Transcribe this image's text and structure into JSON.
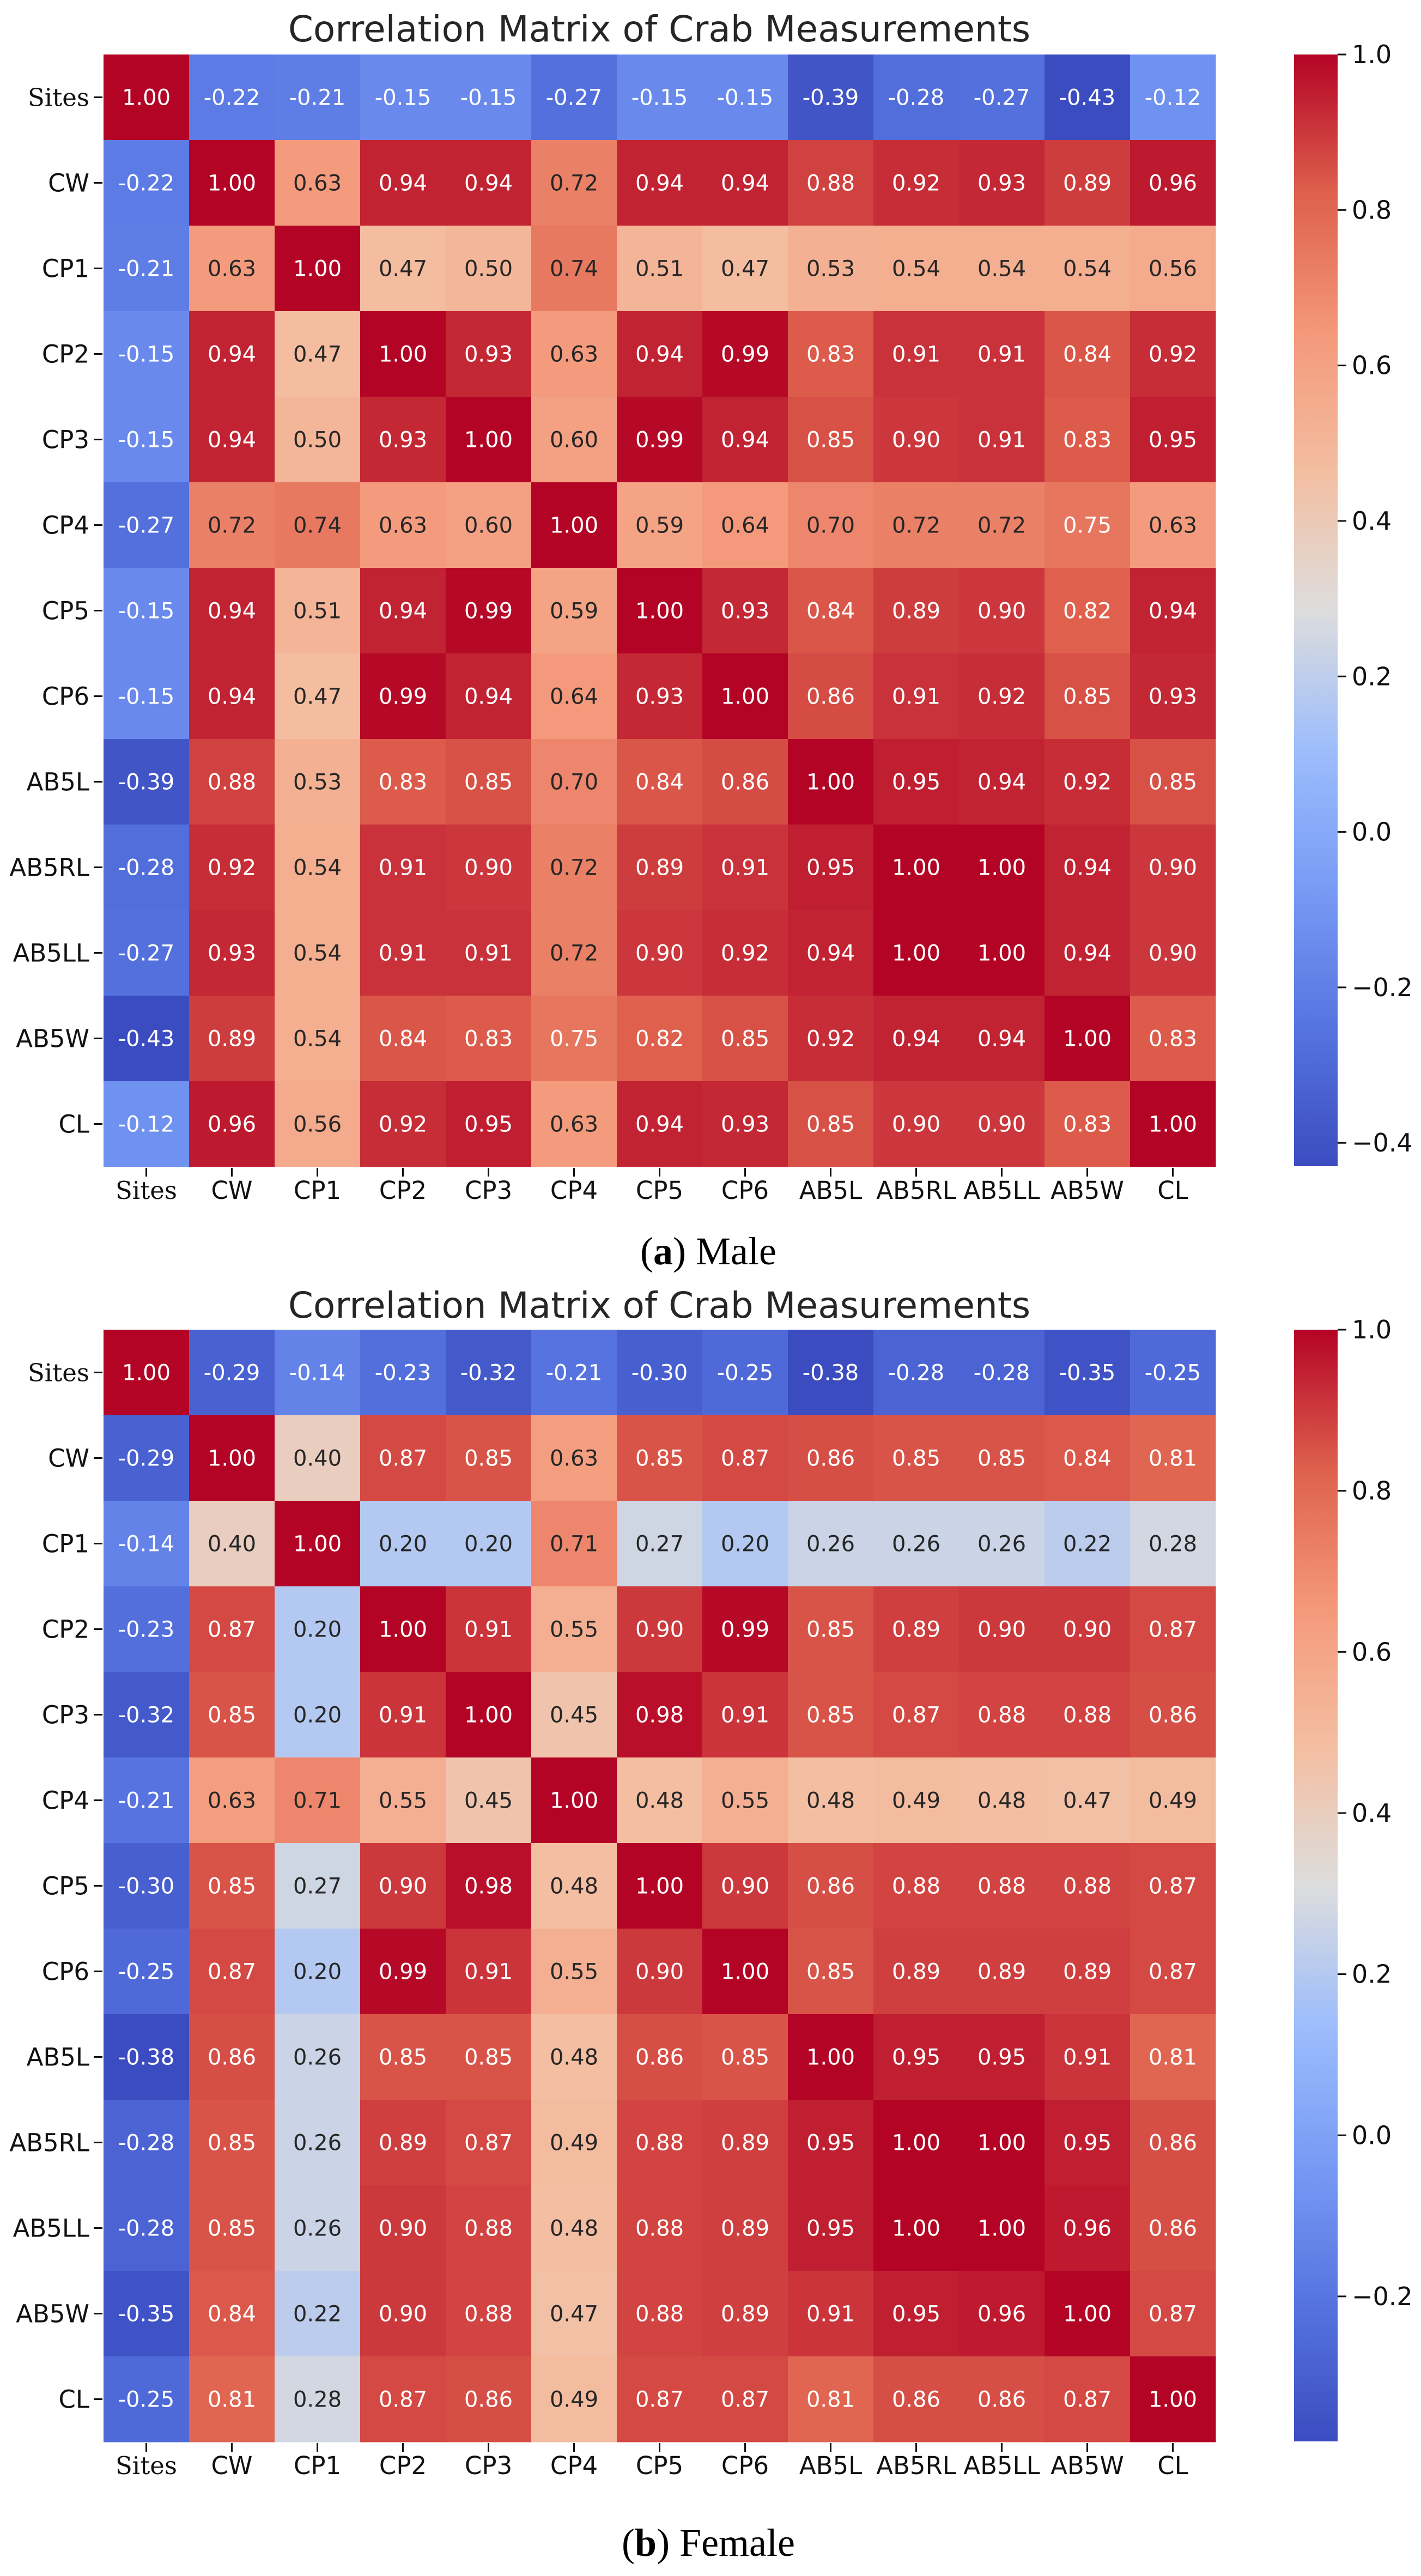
{
  "chart_data": [
    {
      "type": "heatmap",
      "title": "Correlation Matrix of Crab Measurements",
      "caption_letter": "a",
      "caption_text": "Male",
      "x_labels": [
        "Sites",
        "CW",
        "CP1",
        "CP2",
        "CP3",
        "CP4",
        "CP5",
        "CP6",
        "AB5L",
        "AB5RL",
        "AB5LL",
        "AB5W",
        "CL"
      ],
      "y_labels": [
        "Sites",
        "CW",
        "CP1",
        "CP2",
        "CP3",
        "CP4",
        "CP5",
        "CP6",
        "AB5L",
        "AB5RL",
        "AB5LL",
        "AB5W",
        "CL"
      ],
      "values": [
        [
          1.0,
          -0.22,
          -0.21,
          -0.15,
          -0.15,
          -0.27,
          -0.15,
          -0.15,
          -0.39,
          -0.28,
          -0.27,
          -0.43,
          -0.12
        ],
        [
          -0.22,
          1.0,
          0.63,
          0.94,
          0.94,
          0.72,
          0.94,
          0.94,
          0.88,
          0.92,
          0.93,
          0.89,
          0.96
        ],
        [
          -0.21,
          0.63,
          1.0,
          0.47,
          0.5,
          0.74,
          0.51,
          0.47,
          0.53,
          0.54,
          0.54,
          0.54,
          0.56
        ],
        [
          -0.15,
          0.94,
          0.47,
          1.0,
          0.93,
          0.63,
          0.94,
          0.99,
          0.83,
          0.91,
          0.91,
          0.84,
          0.92
        ],
        [
          -0.15,
          0.94,
          0.5,
          0.93,
          1.0,
          0.6,
          0.99,
          0.94,
          0.85,
          0.9,
          0.91,
          0.83,
          0.95
        ],
        [
          -0.27,
          0.72,
          0.74,
          0.63,
          0.6,
          1.0,
          0.59,
          0.64,
          0.7,
          0.72,
          0.72,
          0.75,
          0.63
        ],
        [
          -0.15,
          0.94,
          0.51,
          0.94,
          0.99,
          0.59,
          1.0,
          0.93,
          0.84,
          0.89,
          0.9,
          0.82,
          0.94
        ],
        [
          -0.15,
          0.94,
          0.47,
          0.99,
          0.94,
          0.64,
          0.93,
          1.0,
          0.86,
          0.91,
          0.92,
          0.85,
          0.93
        ],
        [
          -0.39,
          0.88,
          0.53,
          0.83,
          0.85,
          0.7,
          0.84,
          0.86,
          1.0,
          0.95,
          0.94,
          0.92,
          0.85
        ],
        [
          -0.28,
          0.92,
          0.54,
          0.91,
          0.9,
          0.72,
          0.89,
          0.91,
          0.95,
          1.0,
          1.0,
          0.94,
          0.9
        ],
        [
          -0.27,
          0.93,
          0.54,
          0.91,
          0.91,
          0.72,
          0.9,
          0.92,
          0.94,
          1.0,
          1.0,
          0.94,
          0.9
        ],
        [
          -0.43,
          0.89,
          0.54,
          0.84,
          0.83,
          0.75,
          0.82,
          0.85,
          0.92,
          0.94,
          0.94,
          1.0,
          0.83
        ],
        [
          -0.12,
          0.96,
          0.56,
          0.92,
          0.95,
          0.63,
          0.94,
          0.93,
          0.85,
          0.9,
          0.9,
          0.83,
          1.0
        ]
      ],
      "vmin": -0.43,
      "vmax": 1.0,
      "colormap": "coolwarm",
      "colorbar_ticks": [
        1.0,
        0.8,
        0.6,
        0.4,
        0.2,
        0.0,
        -0.2,
        -0.4
      ],
      "colorbar_tick_labels": [
        "1.0",
        "0.8",
        "0.6",
        "0.4",
        "0.2",
        "0.0",
        "−0.2",
        "−0.4"
      ]
    },
    {
      "type": "heatmap",
      "title": "Correlation Matrix of Crab Measurements",
      "caption_letter": "b",
      "caption_text": "Female",
      "x_labels": [
        "Sites",
        "CW",
        "CP1",
        "CP2",
        "CP3",
        "CP4",
        "CP5",
        "CP6",
        "AB5L",
        "AB5RL",
        "AB5LL",
        "AB5W",
        "CL"
      ],
      "y_labels": [
        "Sites",
        "CW",
        "CP1",
        "CP2",
        "CP3",
        "CP4",
        "CP5",
        "CP6",
        "AB5L",
        "AB5RL",
        "AB5LL",
        "AB5W",
        "CL"
      ],
      "values": [
        [
          1.0,
          -0.29,
          -0.14,
          -0.23,
          -0.32,
          -0.21,
          -0.3,
          -0.25,
          -0.38,
          -0.28,
          -0.28,
          -0.35,
          -0.25
        ],
        [
          -0.29,
          1.0,
          0.4,
          0.87,
          0.85,
          0.63,
          0.85,
          0.87,
          0.86,
          0.85,
          0.85,
          0.84,
          0.81
        ],
        [
          -0.14,
          0.4,
          1.0,
          0.2,
          0.2,
          0.71,
          0.27,
          0.2,
          0.26,
          0.26,
          0.26,
          0.22,
          0.28
        ],
        [
          -0.23,
          0.87,
          0.2,
          1.0,
          0.91,
          0.55,
          0.9,
          0.99,
          0.85,
          0.89,
          0.9,
          0.9,
          0.87
        ],
        [
          -0.32,
          0.85,
          0.2,
          0.91,
          1.0,
          0.45,
          0.98,
          0.91,
          0.85,
          0.87,
          0.88,
          0.88,
          0.86
        ],
        [
          -0.21,
          0.63,
          0.71,
          0.55,
          0.45,
          1.0,
          0.48,
          0.55,
          0.48,
          0.49,
          0.48,
          0.47,
          0.49
        ],
        [
          -0.3,
          0.85,
          0.27,
          0.9,
          0.98,
          0.48,
          1.0,
          0.9,
          0.86,
          0.88,
          0.88,
          0.88,
          0.87
        ],
        [
          -0.25,
          0.87,
          0.2,
          0.99,
          0.91,
          0.55,
          0.9,
          1.0,
          0.85,
          0.89,
          0.89,
          0.89,
          0.87
        ],
        [
          -0.38,
          0.86,
          0.26,
          0.85,
          0.85,
          0.48,
          0.86,
          0.85,
          1.0,
          0.95,
          0.95,
          0.91,
          0.81
        ],
        [
          -0.28,
          0.85,
          0.26,
          0.89,
          0.87,
          0.49,
          0.88,
          0.89,
          0.95,
          1.0,
          1.0,
          0.95,
          0.86
        ],
        [
          -0.28,
          0.85,
          0.26,
          0.9,
          0.88,
          0.48,
          0.88,
          0.89,
          0.95,
          1.0,
          1.0,
          0.96,
          0.86
        ],
        [
          -0.35,
          0.84,
          0.22,
          0.9,
          0.88,
          0.47,
          0.88,
          0.89,
          0.91,
          0.95,
          0.96,
          1.0,
          0.87
        ],
        [
          -0.25,
          0.81,
          0.28,
          0.87,
          0.86,
          0.49,
          0.87,
          0.87,
          0.81,
          0.86,
          0.86,
          0.87,
          1.0
        ]
      ],
      "vmin": -0.38,
      "vmax": 1.0,
      "colormap": "coolwarm",
      "colorbar_ticks": [
        1.0,
        0.8,
        0.6,
        0.4,
        0.2,
        0.0,
        -0.2
      ],
      "colorbar_tick_labels": [
        "1.0",
        "0.8",
        "0.6",
        "0.4",
        "0.2",
        "0.0",
        "−0.2"
      ]
    }
  ]
}
